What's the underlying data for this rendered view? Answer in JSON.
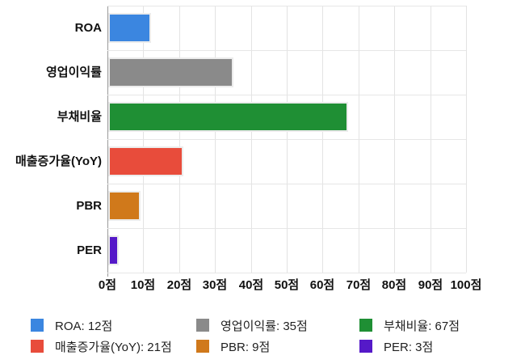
{
  "chart_data": {
    "type": "bar",
    "orientation": "horizontal",
    "title": "",
    "categories": [
      "ROA",
      "영업이익률",
      "부채비율",
      "매출증가율(YoY)",
      "PBR",
      "PER"
    ],
    "values": [
      12,
      35,
      67,
      21,
      9,
      3
    ],
    "value_unit": "점",
    "colors": [
      "#3B86E0",
      "#8A8A8A",
      "#1F8F34",
      "#E84C3B",
      "#D0791B",
      "#5519C8"
    ],
    "x_ticks": [
      "0점",
      "10점",
      "20점",
      "30점",
      "40점",
      "50점",
      "60점",
      "70점",
      "80점",
      "90점",
      "100점"
    ],
    "xlim": [
      0,
      100
    ],
    "grid": true,
    "axis_color": "#9a9a9a",
    "gridline_color": "#e3e3e3",
    "legend": {
      "position": "bottom",
      "entries": [
        {
          "label": "ROA: 12점",
          "color": "#3B86E0"
        },
        {
          "label": "영업이익률: 35점",
          "color": "#8A8A8A"
        },
        {
          "label": "부채비율: 67점",
          "color": "#1F8F34"
        },
        {
          "label": "매출증가율(YoY): 21점",
          "color": "#E84C3B"
        },
        {
          "label": "PBR: 9점",
          "color": "#D0791B"
        },
        {
          "label": "PER: 3점",
          "color": "#5519C8"
        }
      ]
    }
  }
}
